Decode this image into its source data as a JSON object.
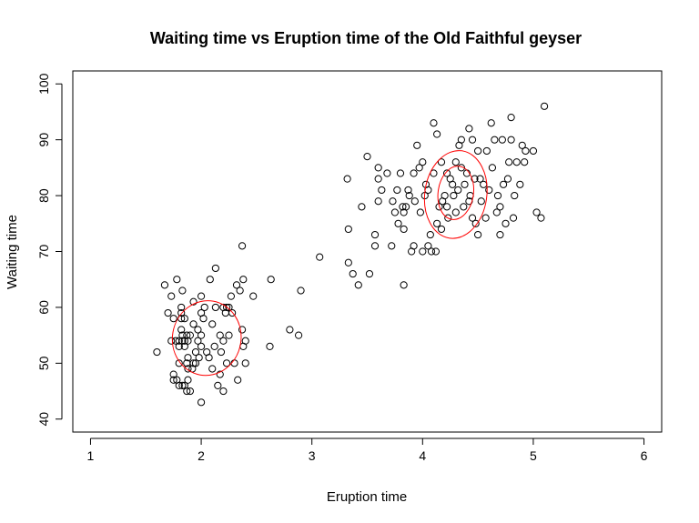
{
  "chart_data": {
    "type": "scatter",
    "title": "Waiting time vs Eruption time of the Old Faithful geyser",
    "xlabel": "Eruption time",
    "ylabel": "Waiting time",
    "xlim": [
      0.84,
      6.16
    ],
    "ylim": [
      37.68,
      102.32
    ],
    "xticks": [
      "1",
      "2",
      "3",
      "4",
      "5",
      "6"
    ],
    "yticks": [
      "40",
      "50",
      "60",
      "70",
      "80",
      "90",
      "100"
    ],
    "grid": false,
    "legend": "none",
    "point_color": "#000000",
    "contour_color": "#ff0000",
    "series": [
      {
        "values": [
          [
            1.6,
            52
          ],
          [
            1.67,
            64
          ],
          [
            1.7,
            59
          ],
          [
            1.73,
            54
          ],
          [
            1.73,
            62
          ],
          [
            1.75,
            48
          ],
          [
            1.75,
            47
          ],
          [
            1.75,
            58
          ],
          [
            1.77,
            54
          ],
          [
            1.78,
            65
          ],
          [
            1.78,
            47
          ],
          [
            1.8,
            50
          ],
          [
            1.8,
            53
          ],
          [
            1.8,
            46
          ],
          [
            1.8,
            54
          ],
          [
            1.82,
            60
          ],
          [
            1.82,
            56
          ],
          [
            1.82,
            59
          ],
          [
            1.82,
            58
          ],
          [
            1.83,
            46
          ],
          [
            1.83,
            63
          ],
          [
            1.83,
            55
          ],
          [
            1.83,
            54
          ],
          [
            1.85,
            46
          ],
          [
            1.85,
            54
          ],
          [
            1.85,
            58
          ],
          [
            1.85,
            53
          ],
          [
            1.87,
            50
          ],
          [
            1.87,
            55
          ],
          [
            1.87,
            45
          ],
          [
            1.88,
            49
          ],
          [
            1.88,
            47
          ],
          [
            1.88,
            51
          ],
          [
            1.88,
            54
          ],
          [
            1.9,
            45
          ],
          [
            1.9,
            55
          ],
          [
            1.92,
            49
          ],
          [
            1.93,
            61
          ],
          [
            1.93,
            50
          ],
          [
            1.93,
            57
          ],
          [
            1.95,
            50
          ],
          [
            1.95,
            52
          ],
          [
            1.97,
            54
          ],
          [
            1.97,
            56
          ],
          [
            1.98,
            51
          ],
          [
            2.0,
            43
          ],
          [
            2.0,
            53
          ],
          [
            2.0,
            55
          ],
          [
            2.0,
            62
          ],
          [
            2.0,
            59
          ],
          [
            2.02,
            58
          ],
          [
            2.03,
            60
          ],
          [
            2.05,
            52
          ],
          [
            2.07,
            51
          ],
          [
            2.08,
            65
          ],
          [
            2.1,
            57
          ],
          [
            2.1,
            49
          ],
          [
            2.12,
            53
          ],
          [
            2.13,
            60
          ],
          [
            2.13,
            67
          ],
          [
            2.15,
            46
          ],
          [
            2.17,
            48
          ],
          [
            2.17,
            55
          ],
          [
            2.18,
            52
          ],
          [
            2.2,
            45
          ],
          [
            2.2,
            54
          ],
          [
            2.2,
            60
          ],
          [
            2.22,
            59
          ],
          [
            2.23,
            50
          ],
          [
            2.23,
            60
          ],
          [
            2.25,
            60
          ],
          [
            2.25,
            55
          ],
          [
            2.27,
            62
          ],
          [
            2.28,
            59
          ],
          [
            2.3,
            50
          ],
          [
            2.32,
            64
          ],
          [
            2.33,
            47
          ],
          [
            2.35,
            63
          ],
          [
            2.37,
            71
          ],
          [
            2.37,
            56
          ],
          [
            2.38,
            53
          ],
          [
            2.38,
            65
          ],
          [
            2.4,
            50
          ],
          [
            2.4,
            54
          ],
          [
            2.47,
            62
          ],
          [
            2.62,
            53
          ],
          [
            2.63,
            65
          ],
          [
            2.8,
            56
          ],
          [
            2.88,
            55
          ],
          [
            2.9,
            63
          ],
          [
            3.07,
            69
          ],
          [
            3.32,
            83
          ],
          [
            3.33,
            68
          ],
          [
            3.33,
            74
          ],
          [
            3.37,
            66
          ],
          [
            3.42,
            64
          ],
          [
            3.45,
            78
          ],
          [
            3.5,
            87
          ],
          [
            3.52,
            66
          ],
          [
            3.57,
            71
          ],
          [
            3.57,
            73
          ],
          [
            3.6,
            85
          ],
          [
            3.6,
            83
          ],
          [
            3.6,
            79
          ],
          [
            3.63,
            81
          ],
          [
            3.68,
            84
          ],
          [
            3.72,
            71
          ],
          [
            3.73,
            79
          ],
          [
            3.75,
            77
          ],
          [
            3.77,
            81
          ],
          [
            3.78,
            75
          ],
          [
            3.8,
            84
          ],
          [
            3.82,
            78
          ],
          [
            3.83,
            64
          ],
          [
            3.83,
            77
          ],
          [
            3.83,
            74
          ],
          [
            3.85,
            78
          ],
          [
            3.87,
            81
          ],
          [
            3.88,
            80
          ],
          [
            3.9,
            70
          ],
          [
            3.92,
            71
          ],
          [
            3.92,
            84
          ],
          [
            3.93,
            79
          ],
          [
            3.95,
            89
          ],
          [
            3.97,
            85
          ],
          [
            3.98,
            77
          ],
          [
            4.0,
            86
          ],
          [
            4.0,
            70
          ],
          [
            4.02,
            80
          ],
          [
            4.03,
            82
          ],
          [
            4.05,
            81
          ],
          [
            4.05,
            71
          ],
          [
            4.07,
            73
          ],
          [
            4.08,
            70
          ],
          [
            4.1,
            84
          ],
          [
            4.1,
            93
          ],
          [
            4.12,
            70
          ],
          [
            4.13,
            75
          ],
          [
            4.13,
            91
          ],
          [
            4.15,
            78
          ],
          [
            4.17,
            86
          ],
          [
            4.17,
            74
          ],
          [
            4.18,
            79
          ],
          [
            4.2,
            80
          ],
          [
            4.22,
            78
          ],
          [
            4.22,
            84
          ],
          [
            4.23,
            76
          ],
          [
            4.25,
            83
          ],
          [
            4.27,
            82
          ],
          [
            4.28,
            80
          ],
          [
            4.3,
            77
          ],
          [
            4.3,
            86
          ],
          [
            4.32,
            81
          ],
          [
            4.33,
            89
          ],
          [
            4.35,
            90
          ],
          [
            4.35,
            85
          ],
          [
            4.37,
            78
          ],
          [
            4.38,
            82
          ],
          [
            4.4,
            84
          ],
          [
            4.42,
            92
          ],
          [
            4.42,
            79
          ],
          [
            4.43,
            80
          ],
          [
            4.45,
            90
          ],
          [
            4.45,
            76
          ],
          [
            4.47,
            83
          ],
          [
            4.48,
            75
          ],
          [
            4.5,
            88
          ],
          [
            4.5,
            73
          ],
          [
            4.52,
            83
          ],
          [
            4.53,
            79
          ],
          [
            4.55,
            82
          ],
          [
            4.57,
            76
          ],
          [
            4.58,
            88
          ],
          [
            4.6,
            81
          ],
          [
            4.62,
            93
          ],
          [
            4.63,
            85
          ],
          [
            4.65,
            90
          ],
          [
            4.67,
            77
          ],
          [
            4.68,
            80
          ],
          [
            4.7,
            73
          ],
          [
            4.7,
            78
          ],
          [
            4.72,
            90
          ],
          [
            4.73,
            82
          ],
          [
            4.75,
            75
          ],
          [
            4.77,
            83
          ],
          [
            4.78,
            86
          ],
          [
            4.8,
            90
          ],
          [
            4.8,
            94
          ],
          [
            4.82,
            76
          ],
          [
            4.83,
            80
          ],
          [
            4.85,
            86
          ],
          [
            4.88,
            82
          ],
          [
            4.9,
            89
          ],
          [
            4.92,
            86
          ],
          [
            4.93,
            88
          ],
          [
            5.0,
            88
          ],
          [
            5.03,
            77
          ],
          [
            5.07,
            76
          ],
          [
            5.1,
            96
          ]
        ]
      }
    ],
    "contours": [
      {
        "center": [
          2.05,
          54.5
        ],
        "rx": 0.31,
        "ry": 6.7,
        "angle": 10
      },
      {
        "center": [
          4.3,
          80.5
        ],
        "rx": 0.16,
        "ry": 4.8,
        "angle": 8
      },
      {
        "center": [
          4.3,
          80.2
        ],
        "rx": 0.28,
        "ry": 7.9,
        "angle": 8
      }
    ]
  }
}
